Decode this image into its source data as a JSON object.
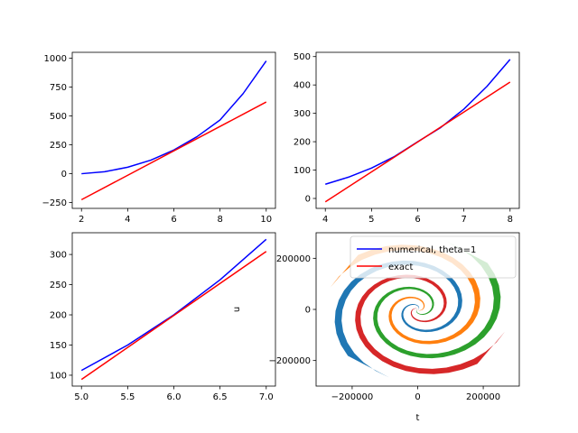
{
  "chart_data": [
    {
      "type": "line",
      "panel": "top-left",
      "xlim": [
        1.6,
        10.4
      ],
      "ylim": [
        -300,
        1050
      ],
      "xticks": [
        2,
        4,
        6,
        8,
        10
      ],
      "yticks": [
        -250,
        0,
        250,
        500,
        750,
        1000
      ],
      "series": [
        {
          "color": "#0000ff",
          "x": [
            2,
            3,
            4,
            5,
            6,
            7,
            8,
            9,
            10
          ],
          "y": [
            0,
            17,
            56,
            117,
            205,
            320,
            465,
            693,
            975
          ]
        },
        {
          "color": "#ff0000",
          "x": [
            2,
            10
          ],
          "y": [
            -225,
            620
          ]
        }
      ]
    },
    {
      "type": "line",
      "panel": "top-right",
      "xlim": [
        3.8,
        8.2
      ],
      "ylim": [
        -35,
        515
      ],
      "xticks": [
        4,
        5,
        6,
        7,
        8
      ],
      "yticks": [
        0,
        100,
        200,
        300,
        400,
        500
      ],
      "series": [
        {
          "color": "#0000ff",
          "x": [
            4,
            4.5,
            5,
            5.5,
            6,
            6.5,
            7,
            7.5,
            8
          ],
          "y": [
            50,
            75,
            107,
            148,
            200,
            250,
            315,
            395,
            490
          ]
        },
        {
          "color": "#ff0000",
          "x": [
            4,
            8
          ],
          "y": [
            -12,
            410
          ]
        }
      ]
    },
    {
      "type": "line",
      "panel": "bottom-left",
      "xlim": [
        4.9,
        7.1
      ],
      "ylim": [
        82,
        336
      ],
      "xticks": [
        5.0,
        5.5,
        6.0,
        6.5,
        7.0
      ],
      "xticklabels": [
        "5.0",
        "5.5",
        "6.0",
        "6.5",
        "7.0"
      ],
      "yticks": [
        100,
        150,
        200,
        250,
        300
      ],
      "series": [
        {
          "color": "#0000ff",
          "x": [
            5,
            5.5,
            6,
            6.5,
            7
          ],
          "y": [
            108,
            150,
            200,
            258,
            325
          ]
        },
        {
          "color": "#ff0000",
          "x": [
            5,
            7
          ],
          "y": [
            93,
            305
          ]
        }
      ]
    },
    {
      "type": "area",
      "panel": "bottom-right",
      "xlabel": "t",
      "ylabel": "u",
      "xlim": [
        -310000,
        310000
      ],
      "ylim": [
        -300000,
        300000
      ],
      "xticks": [
        -200000,
        0,
        200000
      ],
      "yticks": [
        -200000,
        0,
        200000
      ],
      "legend_position": "top-right",
      "legend": [
        {
          "label": "numerical, theta=1",
          "color": "#0000ff"
        },
        {
          "label": "exact",
          "color": "#ff0000"
        }
      ],
      "spiral_arms": [
        {
          "color": "#1f77b4",
          "rotation_deg": 0
        },
        {
          "color": "#ff7f0e",
          "rotation_deg": 90
        },
        {
          "color": "#2ca02c",
          "rotation_deg": 180
        },
        {
          "color": "#d62728",
          "rotation_deg": 270
        }
      ],
      "spiral_outer_radius": 280000
    }
  ]
}
